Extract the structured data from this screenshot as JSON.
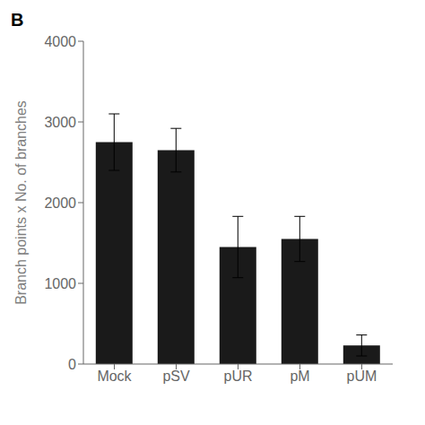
{
  "chart_data": {
    "type": "bar",
    "title": "B",
    "categories": [
      "Mock",
      "pSV",
      "pUR",
      "pM",
      "pUM"
    ],
    "values": [
      2750,
      2650,
      1450,
      1550,
      230
    ],
    "errors": [
      350,
      270,
      380,
      280,
      130
    ],
    "color": "#1a1a1a",
    "ylabel": "Branch points x No. of branches",
    "ylim": [
      0,
      4000
    ],
    "yticks": [
      0,
      1000,
      2000,
      3000,
      4000
    ]
  }
}
